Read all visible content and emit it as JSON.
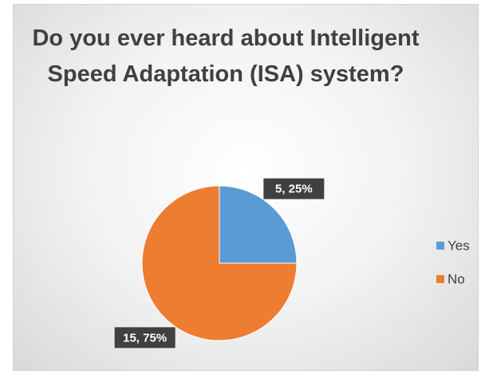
{
  "chart_data": {
    "type": "pie",
    "title": "Do you ever heard about Intelligent Speed Adaptation (ISA) system?",
    "categories": [
      "Yes",
      "No"
    ],
    "values": [
      5,
      15
    ],
    "value_labels": [
      "5, 25%",
      "15, 75%"
    ],
    "colors": [
      "#5b9bd5",
      "#ed7d31"
    ],
    "legend": "right"
  }
}
